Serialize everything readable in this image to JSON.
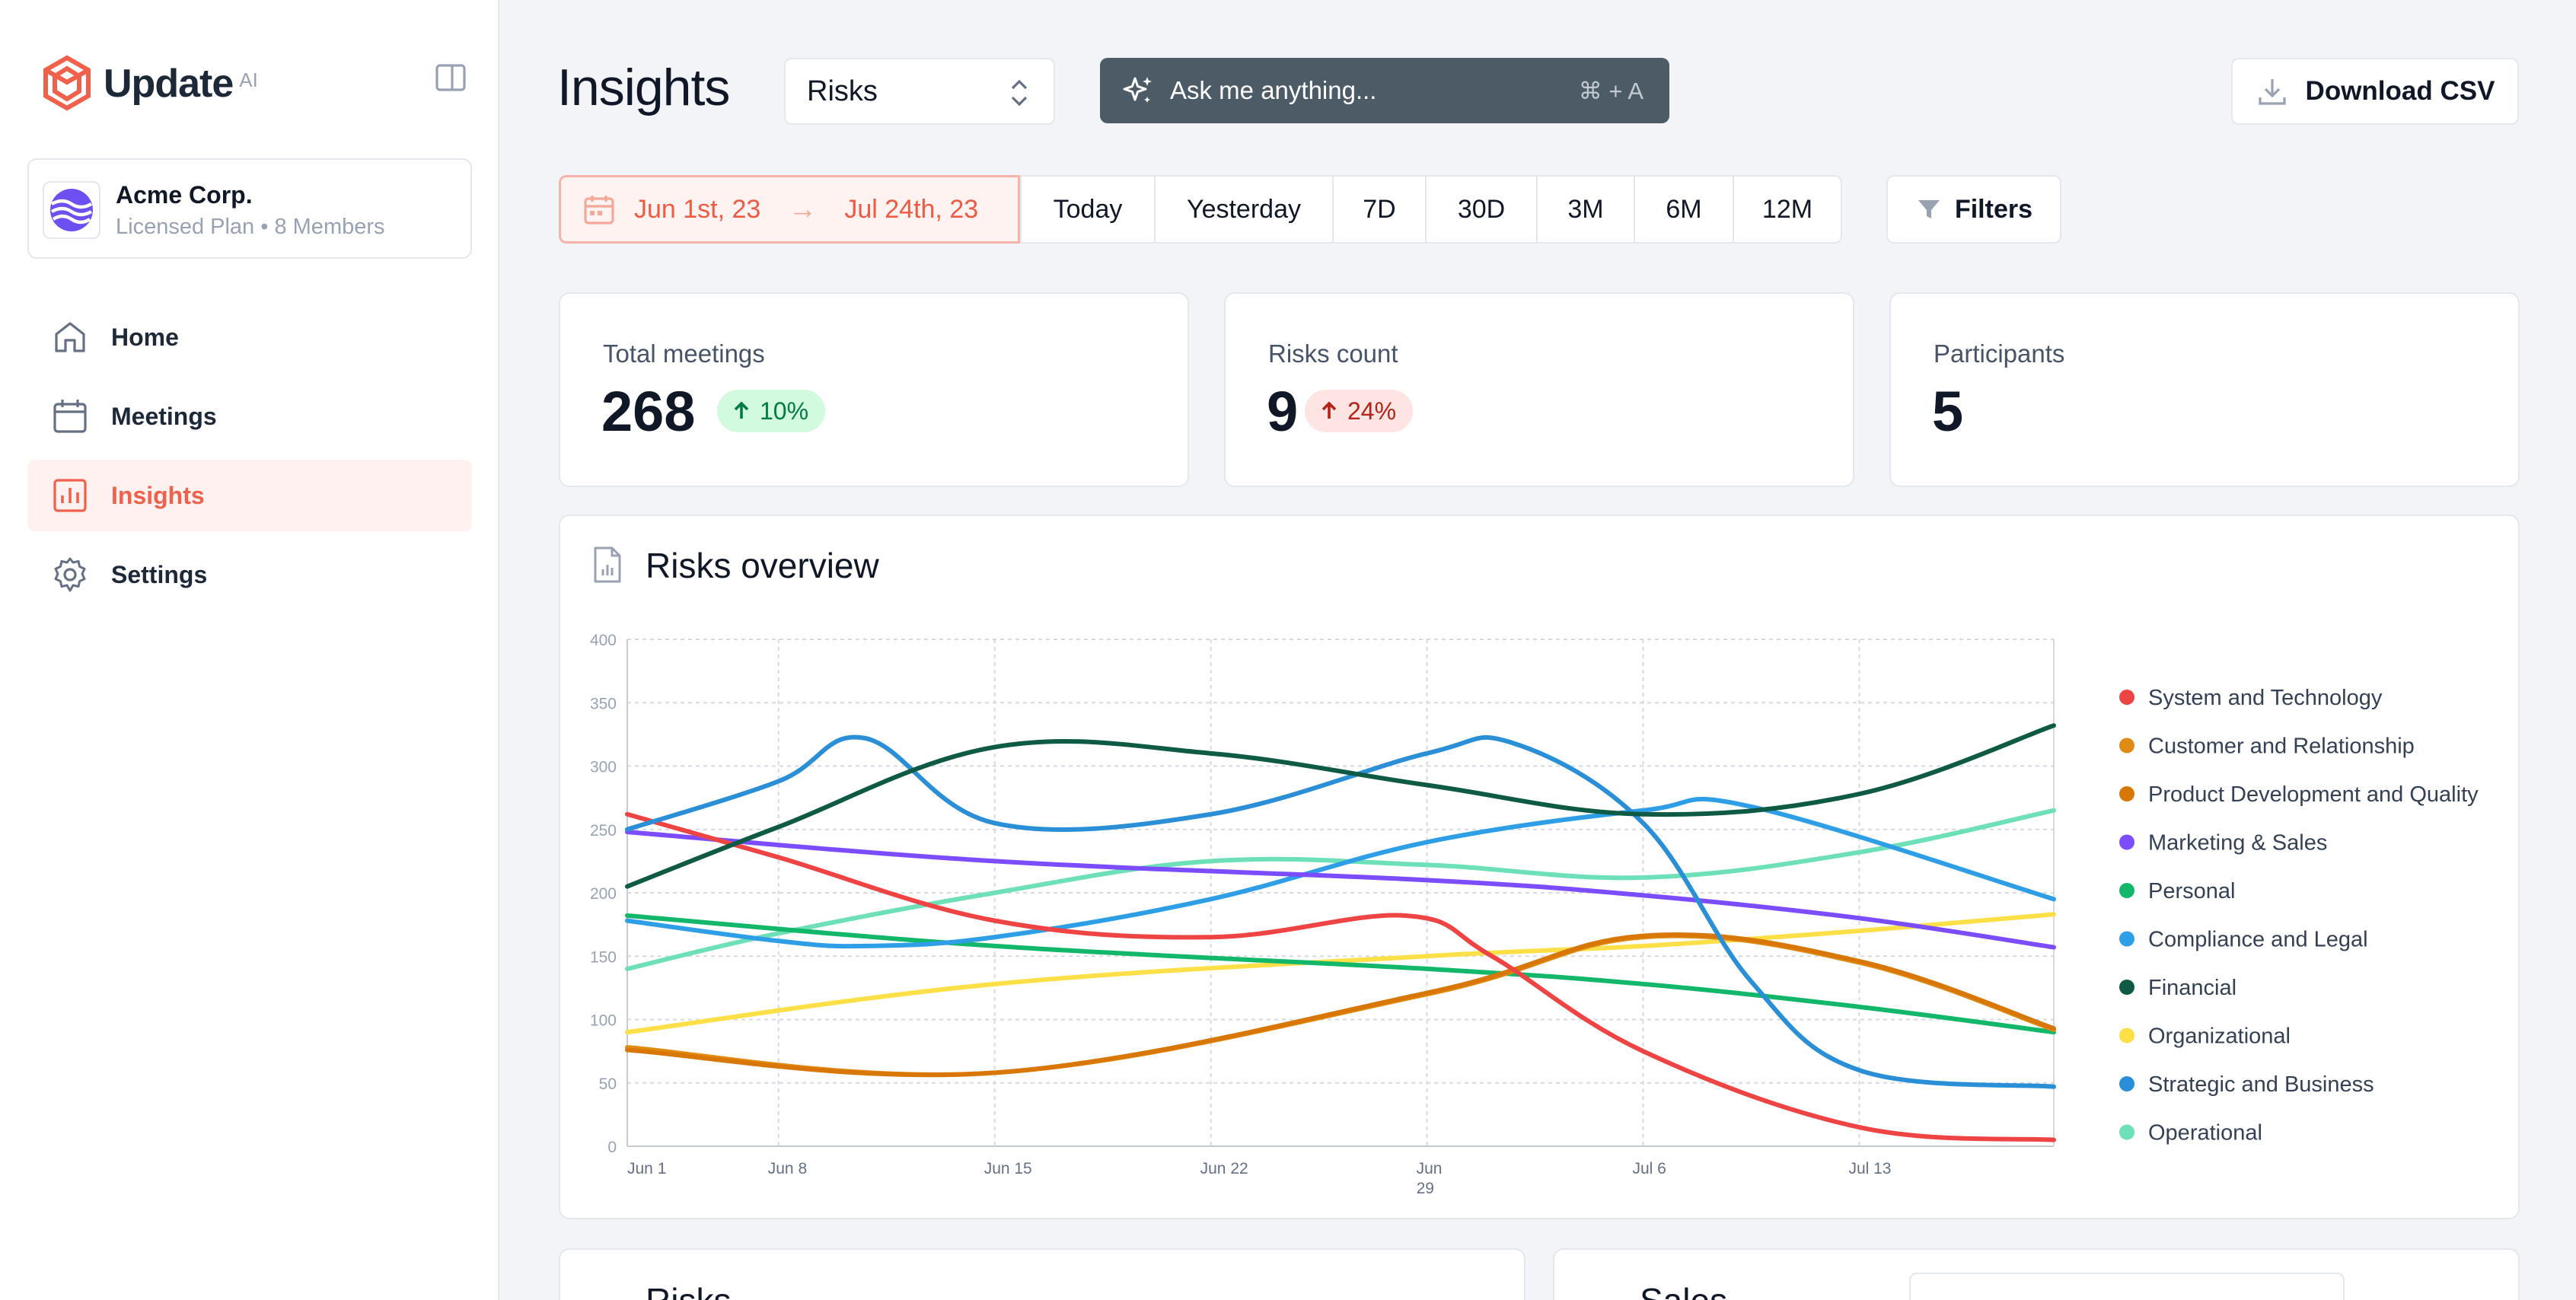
{
  "brand": {
    "name": "Update",
    "suffix": "AI",
    "accent": "#f0614b"
  },
  "org": {
    "name": "Acme Corp.",
    "plan": "Licensed Plan",
    "members": "8 Members",
    "separator": "•"
  },
  "nav": [
    {
      "label": "Home",
      "icon": "home-icon",
      "active": false
    },
    {
      "label": "Meetings",
      "icon": "calendar-icon",
      "active": false
    },
    {
      "label": "Insights",
      "icon": "bar-chart-icon",
      "active": true
    },
    {
      "label": "Settings",
      "icon": "gear-icon",
      "active": false
    }
  ],
  "header": {
    "title": "Insights",
    "select_value": "Risks",
    "ask_placeholder": "Ask me anything...",
    "ask_shortcut": "⌘ + A",
    "download_label": "Download CSV"
  },
  "date_filter": {
    "start": "Jun 1st, 23",
    "end": "Jul 24th, 23",
    "arrow": "→",
    "presets": [
      "Today",
      "Yesterday",
      "7D",
      "30D",
      "3M",
      "6M",
      "12M"
    ],
    "filters_label": "Filters"
  },
  "stats": [
    {
      "label": "Total meetings",
      "value": "268",
      "delta": "10%",
      "trend": "up",
      "tone": "positive"
    },
    {
      "label": "Risks count",
      "value": "9",
      "delta": "24%",
      "trend": "up",
      "tone": "negative"
    },
    {
      "label": "Participants",
      "value": "5"
    }
  ],
  "chart_title": "Risks overview",
  "chart_data": {
    "type": "line",
    "title": "Risks overview",
    "x_ticks": [
      "Jun 1",
      "Jun 8",
      "Jun 15",
      "Jun 22",
      "Jun 29",
      "Jul 6",
      "Jul 13"
    ],
    "x_tick_days": [
      0,
      7,
      17,
      27,
      37,
      47,
      57
    ],
    "x_domain_days": [
      0,
      66
    ],
    "ylim": [
      0,
      400
    ],
    "y_ticks": [
      0,
      50,
      100,
      150,
      200,
      250,
      300,
      350,
      400
    ],
    "grid": true,
    "legend_position": "right",
    "series": [
      {
        "name": "System and Technology",
        "color": "#ef4444",
        "x": [
          0,
          7,
          17,
          27,
          36,
          40,
          47,
          57,
          66
        ],
        "y": [
          262,
          228,
          178,
          165,
          182,
          150,
          75,
          15,
          5
        ]
      },
      {
        "name": "Customer and Relationship",
        "color": "#e08b12",
        "x": [
          0,
          17,
          37,
          47,
          57,
          66
        ],
        "y": [
          78,
          58,
          120,
          165,
          145,
          92
        ]
      },
      {
        "name": "Product Development and Quality",
        "color": "#d97706",
        "x": [
          0,
          17,
          37,
          47,
          57,
          66
        ],
        "y": [
          76,
          58,
          121,
          166,
          146,
          93
        ]
      },
      {
        "name": "Marketing & Sales",
        "color": "#7c4dff",
        "x": [
          0,
          17,
          37,
          47,
          57,
          66
        ],
        "y": [
          248,
          225,
          210,
          198,
          180,
          157
        ]
      },
      {
        "name": "Personal",
        "color": "#12b76a",
        "x": [
          0,
          17,
          37,
          47,
          57,
          66
        ],
        "y": [
          182,
          158,
          140,
          128,
          110,
          90
        ]
      },
      {
        "name": "Compliance and Legal",
        "color": "#2e9fe6",
        "x": [
          0,
          7,
          11,
          17,
          27,
          37,
          47,
          52,
          66
        ],
        "y": [
          178,
          162,
          158,
          165,
          195,
          240,
          265,
          268,
          195
        ]
      },
      {
        "name": "Financial",
        "color": "#0e5a45",
        "x": [
          0,
          7,
          17,
          27,
          37,
          47,
          57,
          66
        ],
        "y": [
          205,
          252,
          315,
          310,
          285,
          262,
          278,
          332
        ]
      },
      {
        "name": "Organizational",
        "color": "#fde047",
        "x": [
          0,
          17,
          37,
          47,
          57,
          66
        ],
        "y": [
          90,
          128,
          150,
          158,
          170,
          183
        ]
      },
      {
        "name": "Strategic and Business",
        "color": "#2a8fd6",
        "x": [
          0,
          7,
          11,
          17,
          27,
          37,
          41,
          47,
          52,
          57,
          66
        ],
        "y": [
          250,
          288,
          322,
          255,
          262,
          310,
          318,
          255,
          130,
          60,
          47
        ]
      },
      {
        "name": "Operational",
        "color": "#6ee0b8",
        "x": [
          0,
          7,
          17,
          27,
          37,
          47,
          57,
          66
        ],
        "y": [
          140,
          168,
          200,
          225,
          222,
          212,
          232,
          265
        ]
      }
    ]
  },
  "bottom_cards": [
    "Risks",
    "Sales"
  ]
}
